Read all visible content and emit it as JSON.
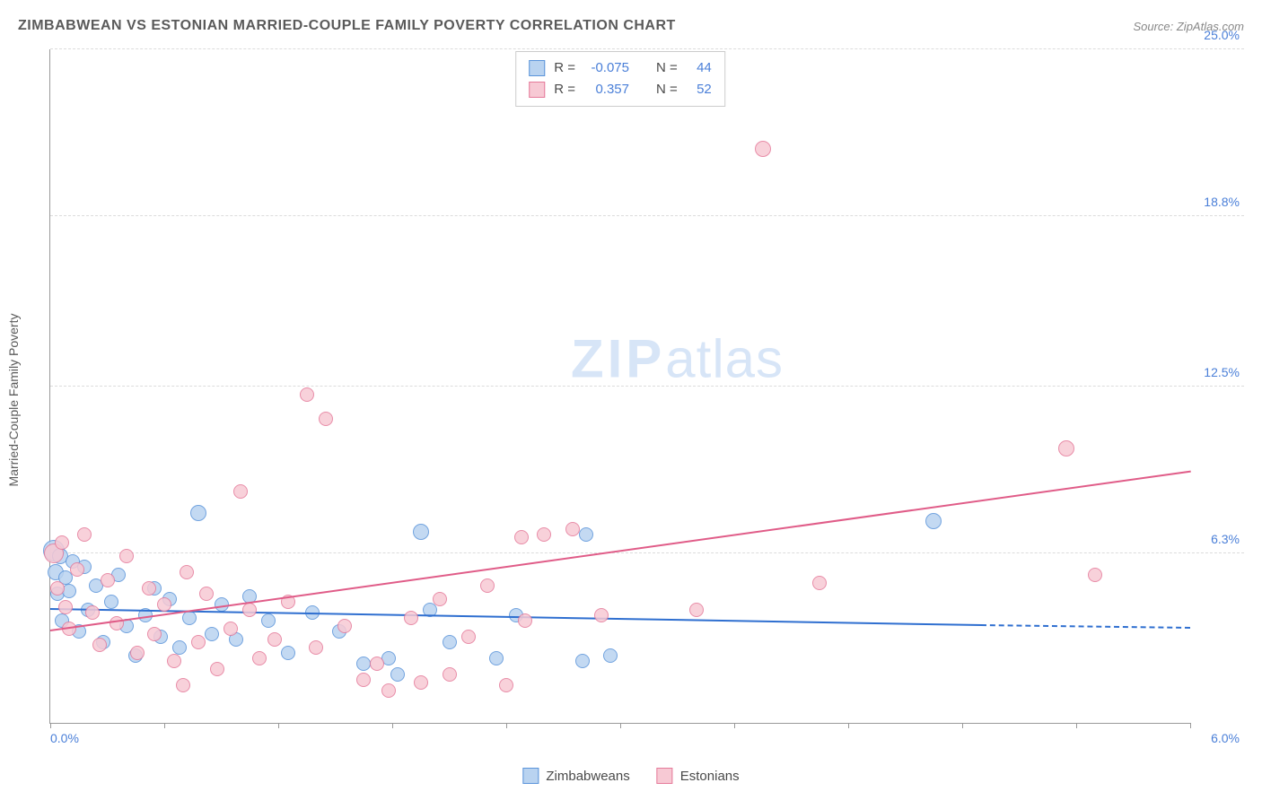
{
  "header": {
    "title": "ZIMBABWEAN VS ESTONIAN MARRIED-COUPLE FAMILY POVERTY CORRELATION CHART",
    "source": "Source: ZipAtlas.com"
  },
  "axes": {
    "y_label": "Married-Couple Family Poverty",
    "x_min": 0.0,
    "x_max": 6.0,
    "x_left_label": "0.0%",
    "x_right_label": "6.0%",
    "y_min": 0.0,
    "y_max": 25.0,
    "y_ticks": [
      {
        "value": 25.0,
        "label": "25.0%"
      },
      {
        "value": 18.8,
        "label": "18.8%"
      },
      {
        "value": 12.5,
        "label": "12.5%"
      },
      {
        "value": 6.3,
        "label": "6.3%"
      }
    ],
    "x_tick_step_pct": 10,
    "grid_color": "#dcdcdc",
    "axis_color": "#999999"
  },
  "watermark": {
    "bold": "ZIP",
    "light": "atlas"
  },
  "series": [
    {
      "name": "Zimbabweans",
      "fill": "#b9d3f0",
      "stroke": "#5a94da",
      "line_color": "#2f6fd0",
      "r_value": "-0.075",
      "n_value": "44",
      "point_radius": 8,
      "trend": {
        "x1": 0.0,
        "y1": 4.2,
        "x2": 4.9,
        "y2": 3.6,
        "dash_to_x": 6.0,
        "dash_to_y": 3.5
      },
      "points": [
        {
          "x": 0.02,
          "y": 6.4,
          "r": 12
        },
        {
          "x": 0.03,
          "y": 5.6,
          "r": 9
        },
        {
          "x": 0.04,
          "y": 4.8,
          "r": 8
        },
        {
          "x": 0.05,
          "y": 6.2,
          "r": 9
        },
        {
          "x": 0.06,
          "y": 3.8,
          "r": 8
        },
        {
          "x": 0.08,
          "y": 5.4,
          "r": 8
        },
        {
          "x": 0.1,
          "y": 4.9,
          "r": 8
        },
        {
          "x": 0.12,
          "y": 6.0,
          "r": 8
        },
        {
          "x": 0.15,
          "y": 3.4,
          "r": 8
        },
        {
          "x": 0.18,
          "y": 5.8,
          "r": 8
        },
        {
          "x": 0.2,
          "y": 4.2,
          "r": 8
        },
        {
          "x": 0.24,
          "y": 5.1,
          "r": 8
        },
        {
          "x": 0.28,
          "y": 3.0,
          "r": 8
        },
        {
          "x": 0.32,
          "y": 4.5,
          "r": 8
        },
        {
          "x": 0.36,
          "y": 5.5,
          "r": 8
        },
        {
          "x": 0.4,
          "y": 3.6,
          "r": 8
        },
        {
          "x": 0.45,
          "y": 2.5,
          "r": 8
        },
        {
          "x": 0.5,
          "y": 4.0,
          "r": 8
        },
        {
          "x": 0.55,
          "y": 5.0,
          "r": 8
        },
        {
          "x": 0.58,
          "y": 3.2,
          "r": 8
        },
        {
          "x": 0.63,
          "y": 4.6,
          "r": 8
        },
        {
          "x": 0.68,
          "y": 2.8,
          "r": 8
        },
        {
          "x": 0.73,
          "y": 3.9,
          "r": 8
        },
        {
          "x": 0.78,
          "y": 7.8,
          "r": 9
        },
        {
          "x": 0.85,
          "y": 3.3,
          "r": 8
        },
        {
          "x": 0.9,
          "y": 4.4,
          "r": 8
        },
        {
          "x": 0.98,
          "y": 3.1,
          "r": 8
        },
        {
          "x": 1.05,
          "y": 4.7,
          "r": 8
        },
        {
          "x": 1.15,
          "y": 3.8,
          "r": 8
        },
        {
          "x": 1.25,
          "y": 2.6,
          "r": 8
        },
        {
          "x": 1.38,
          "y": 4.1,
          "r": 8
        },
        {
          "x": 1.52,
          "y": 3.4,
          "r": 8
        },
        {
          "x": 1.65,
          "y": 2.2,
          "r": 8
        },
        {
          "x": 1.78,
          "y": 2.4,
          "r": 8
        },
        {
          "x": 1.83,
          "y": 1.8,
          "r": 8
        },
        {
          "x": 1.95,
          "y": 7.1,
          "r": 9
        },
        {
          "x": 2.0,
          "y": 4.2,
          "r": 8
        },
        {
          "x": 2.1,
          "y": 3.0,
          "r": 8
        },
        {
          "x": 2.35,
          "y": 2.4,
          "r": 8
        },
        {
          "x": 2.45,
          "y": 4.0,
          "r": 8
        },
        {
          "x": 2.8,
          "y": 2.3,
          "r": 8
        },
        {
          "x": 2.82,
          "y": 7.0,
          "r": 8
        },
        {
          "x": 2.95,
          "y": 2.5,
          "r": 8
        },
        {
          "x": 4.65,
          "y": 7.5,
          "r": 9
        }
      ]
    },
    {
      "name": "Estonians",
      "fill": "#f7c9d4",
      "stroke": "#e57a9a",
      "line_color": "#e05c88",
      "r_value": "0.357",
      "n_value": "52",
      "point_radius": 8,
      "trend": {
        "x1": 0.0,
        "y1": 3.4,
        "x2": 6.0,
        "y2": 9.3
      },
      "points": [
        {
          "x": 0.02,
          "y": 6.3,
          "r": 11
        },
        {
          "x": 0.04,
          "y": 5.0,
          "r": 8
        },
        {
          "x": 0.06,
          "y": 6.7,
          "r": 8
        },
        {
          "x": 0.08,
          "y": 4.3,
          "r": 8
        },
        {
          "x": 0.1,
          "y": 3.5,
          "r": 8
        },
        {
          "x": 0.14,
          "y": 5.7,
          "r": 8
        },
        {
          "x": 0.18,
          "y": 7.0,
          "r": 8
        },
        {
          "x": 0.22,
          "y": 4.1,
          "r": 8
        },
        {
          "x": 0.26,
          "y": 2.9,
          "r": 8
        },
        {
          "x": 0.3,
          "y": 5.3,
          "r": 8
        },
        {
          "x": 0.35,
          "y": 3.7,
          "r": 8
        },
        {
          "x": 0.4,
          "y": 6.2,
          "r": 8
        },
        {
          "x": 0.46,
          "y": 2.6,
          "r": 8
        },
        {
          "x": 0.52,
          "y": 5.0,
          "r": 8
        },
        {
          "x": 0.55,
          "y": 3.3,
          "r": 8
        },
        {
          "x": 0.6,
          "y": 4.4,
          "r": 8
        },
        {
          "x": 0.65,
          "y": 2.3,
          "r": 8
        },
        {
          "x": 0.72,
          "y": 5.6,
          "r": 8
        },
        {
          "x": 0.78,
          "y": 3.0,
          "r": 8
        },
        {
          "x": 0.82,
          "y": 4.8,
          "r": 8
        },
        {
          "x": 0.88,
          "y": 2.0,
          "r": 8
        },
        {
          "x": 0.95,
          "y": 3.5,
          "r": 8
        },
        {
          "x": 1.0,
          "y": 8.6,
          "r": 8
        },
        {
          "x": 1.05,
          "y": 4.2,
          "r": 8
        },
        {
          "x": 1.1,
          "y": 2.4,
          "r": 8
        },
        {
          "x": 1.18,
          "y": 3.1,
          "r": 8
        },
        {
          "x": 1.25,
          "y": 4.5,
          "r": 8
        },
        {
          "x": 1.35,
          "y": 12.2,
          "r": 8
        },
        {
          "x": 1.4,
          "y": 2.8,
          "r": 8
        },
        {
          "x": 1.45,
          "y": 11.3,
          "r": 8
        },
        {
          "x": 1.55,
          "y": 3.6,
          "r": 8
        },
        {
          "x": 1.65,
          "y": 1.6,
          "r": 8
        },
        {
          "x": 1.72,
          "y": 2.2,
          "r": 8
        },
        {
          "x": 1.78,
          "y": 1.2,
          "r": 8
        },
        {
          "x": 1.9,
          "y": 3.9,
          "r": 8
        },
        {
          "x": 1.95,
          "y": 1.5,
          "r": 8
        },
        {
          "x": 2.05,
          "y": 4.6,
          "r": 8
        },
        {
          "x": 2.1,
          "y": 1.8,
          "r": 8
        },
        {
          "x": 2.2,
          "y": 3.2,
          "r": 8
        },
        {
          "x": 2.3,
          "y": 5.1,
          "r": 8
        },
        {
          "x": 2.4,
          "y": 1.4,
          "r": 8
        },
        {
          "x": 2.48,
          "y": 6.9,
          "r": 8
        },
        {
          "x": 2.5,
          "y": 3.8,
          "r": 8
        },
        {
          "x": 2.6,
          "y": 7.0,
          "r": 8
        },
        {
          "x": 2.75,
          "y": 7.2,
          "r": 8
        },
        {
          "x": 2.9,
          "y": 4.0,
          "r": 8
        },
        {
          "x": 3.4,
          "y": 4.2,
          "r": 8
        },
        {
          "x": 3.75,
          "y": 21.3,
          "r": 9
        },
        {
          "x": 4.05,
          "y": 5.2,
          "r": 8
        },
        {
          "x": 5.35,
          "y": 10.2,
          "r": 9
        },
        {
          "x": 5.5,
          "y": 5.5,
          "r": 8
        },
        {
          "x": 0.7,
          "y": 1.4,
          "r": 8
        }
      ]
    }
  ],
  "stats_legend": {
    "r_label": "R =",
    "n_label": "N ="
  },
  "colors": {
    "tick_text": "#4a7fd8",
    "title_text": "#5a5a5a",
    "source_text": "#888888",
    "legend_text": "#4a4a4a",
    "watermark": "#d7e5f7"
  }
}
